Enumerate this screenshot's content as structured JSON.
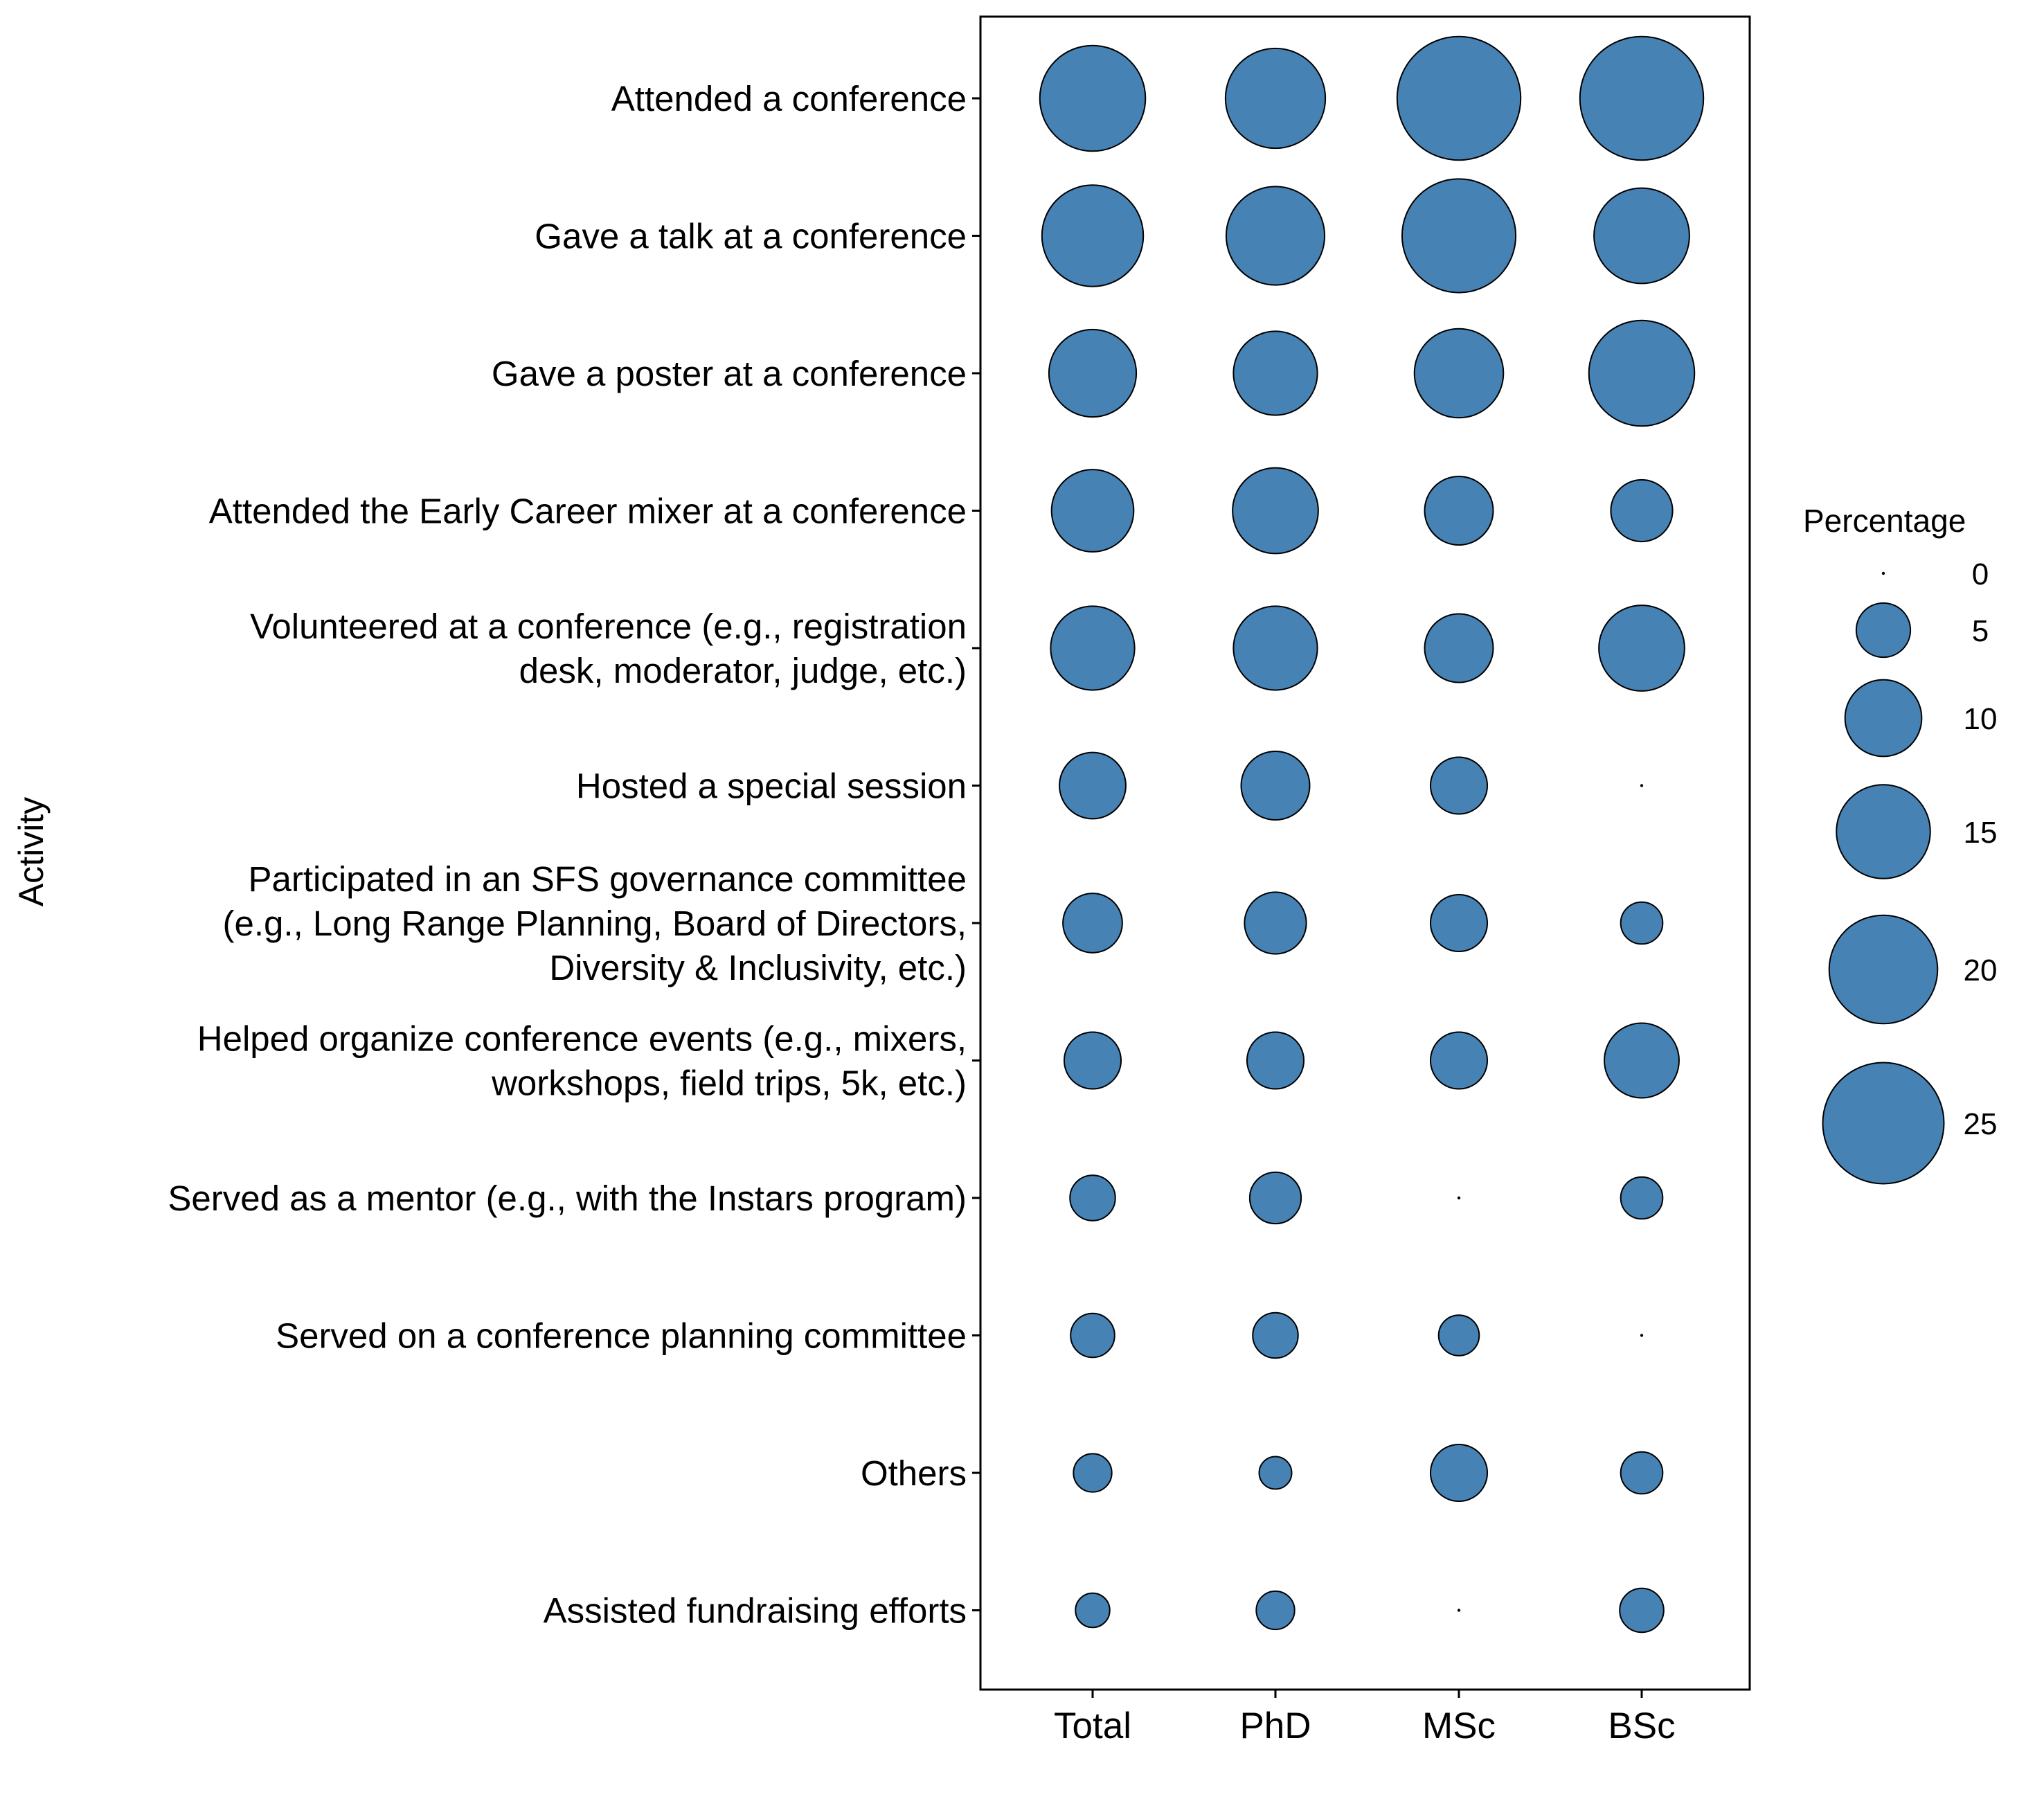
{
  "chart_data": {
    "type": "bubble",
    "ylabel": "Activity",
    "xlabel": "",
    "categories_x": [
      "Total",
      "PhD",
      "MSc",
      "BSc"
    ],
    "categories_y": [
      [
        "Attended a conference"
      ],
      [
        "Gave a talk at a conference"
      ],
      [
        "Gave a poster at a conference"
      ],
      [
        "Attended the Early Career mixer at a conference"
      ],
      [
        "Volunteered at a conference (e.g., registration",
        "desk, moderator, judge, etc.)"
      ],
      [
        "Hosted a special session"
      ],
      [
        "Participated in an SFS governance committee",
        "(e.g., Long Range Planning, Board of Directors,",
        "Diversity & Inclusivity, etc.)"
      ],
      [
        "Helped organize conference events (e.g., mixers,",
        "workshops, field trips, 5k, etc.)"
      ],
      [
        "Served as a mentor (e.g., with the Instars program)"
      ],
      [
        "Served on a conference planning committee"
      ],
      [
        "Others"
      ],
      [
        "Assisted fundraising efforts"
      ]
    ],
    "values": [
      [
        19.0,
        17.0,
        26.0,
        26.0
      ],
      [
        17.5,
        16.5,
        22.0,
        15.5
      ],
      [
        13.0,
        12.0,
        13.5,
        19.0
      ],
      [
        11.5,
        12.5,
        8.0,
        6.5
      ],
      [
        12.0,
        12.0,
        8.0,
        12.5
      ],
      [
        7.5,
        8.0,
        5.5,
        0.0
      ],
      [
        6.0,
        6.5,
        5.5,
        3.0
      ],
      [
        5.5,
        5.5,
        5.5,
        9.5
      ],
      [
        3.5,
        4.5,
        0.0,
        3.0
      ],
      [
        3.3,
        3.5,
        2.8,
        0.0
      ],
      [
        2.5,
        1.8,
        5.5,
        3.0
      ],
      [
        2.0,
        2.5,
        0.0,
        3.3
      ]
    ],
    "legend": {
      "title": "Percentage",
      "values": [
        0,
        5,
        10,
        15,
        20,
        25
      ],
      "labels": [
        "0",
        "5",
        "10",
        "15",
        "20",
        "25"
      ],
      "position": "right"
    },
    "color": "#4682B4",
    "outline": "#000000",
    "size_scale": "area"
  }
}
